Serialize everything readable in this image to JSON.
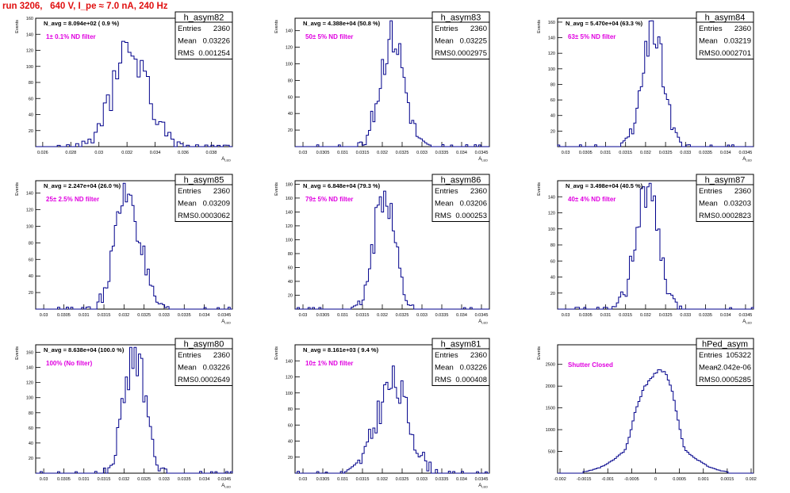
{
  "run_title": "run 3206,   640 V, I_pe ≈ 7.0 nA, 240 Hz",
  "colors": {
    "histogram": "#00008b",
    "annotation": "#e000e0",
    "run_title": "#e01010",
    "frame": "#000000"
  },
  "chart_data": [
    {
      "type": "histogram",
      "name": "h_asym82",
      "stats": [
        [
          "Entries",
          "2360"
        ],
        [
          "Mean",
          "0.03226"
        ],
        [
          "RMS",
          "0.001254"
        ]
      ],
      "navg": "N_avg = 8.094e+02 ( 0.9 %)",
      "note": "1± 0.1% ND filter",
      "ylabel": "Events",
      "xlabel": "A_{LED}",
      "xlim": [
        0.0255,
        0.0395
      ],
      "ylim": [
        0,
        160
      ],
      "xticks": [
        "0.026",
        "0.028",
        "0.03",
        "0.032",
        "0.034",
        "0.036",
        "0.038"
      ],
      "xtick_values": [
        0.026,
        0.028,
        0.03,
        0.032,
        0.034,
        0.036,
        0.038
      ],
      "yticks": [
        20,
        40,
        60,
        80,
        100,
        120,
        140,
        160
      ],
      "mean": 0.03226,
      "rms": 0.001254,
      "peak": 119,
      "bins": 64,
      "seed": 82
    },
    {
      "type": "histogram",
      "name": "h_asym83",
      "stats": [
        [
          "Entries",
          "2360"
        ],
        [
          "Mean",
          "0.03225"
        ],
        [
          "RMS",
          "0.0002975"
        ]
      ],
      "navg": "N_avg = 4.388e+04 (50.8 %)",
      "note": "50± 5% ND filter",
      "ylabel": "Events",
      "xlabel": "A_{LED}",
      "xlim": [
        0.0298,
        0.0347
      ],
      "ylim": [
        0,
        155
      ],
      "xticks": [
        "0.03",
        "0.0305",
        "0.031",
        "0.0315",
        "0.032",
        "0.0325",
        "0.033",
        "0.0335",
        "0.034",
        "0.0345"
      ],
      "xtick_values": [
        0.03,
        0.0305,
        0.031,
        0.0315,
        0.032,
        0.0325,
        0.033,
        0.0335,
        0.034,
        0.0345
      ],
      "yticks": [
        20,
        40,
        60,
        80,
        100,
        120,
        140
      ],
      "mean": 0.03225,
      "rms": 0.0002975,
      "peak": 136,
      "bins": 90,
      "seed": 83
    },
    {
      "type": "histogram",
      "name": "h_asym84",
      "stats": [
        [
          "Entries",
          "2360"
        ],
        [
          "Mean",
          "0.03219"
        ],
        [
          "RMS",
          "0.0002701"
        ]
      ],
      "navg": "N_avg = 5.470e+04 (63.3 %)",
      "note": "63± 5% ND filter",
      "ylabel": "Events",
      "xlabel": "A_{LED}",
      "xlim": [
        0.0298,
        0.0347
      ],
      "ylim": [
        0,
        165
      ],
      "xticks": [
        "0.03",
        "0.0305",
        "0.031",
        "0.0315",
        "0.032",
        "0.0325",
        "0.033",
        "0.0335",
        "0.034",
        "0.0345"
      ],
      "xtick_values": [
        0.03,
        0.0305,
        0.031,
        0.0315,
        0.032,
        0.0325,
        0.033,
        0.0335,
        0.034,
        0.0345
      ],
      "yticks": [
        20,
        40,
        60,
        80,
        100,
        120,
        140,
        160
      ],
      "mean": 0.03219,
      "rms": 0.0002701,
      "peak": 152,
      "bins": 90,
      "seed": 84
    },
    {
      "type": "histogram",
      "name": "h_asym85",
      "stats": [
        [
          "Entries",
          "2360"
        ],
        [
          "Mean",
          "0.03209"
        ],
        [
          "RMS",
          "0.0003062"
        ]
      ],
      "navg": "N_avg = 2.247e+04 (26.0 %)",
      "note": "25± 2.5% ND filter",
      "ylabel": "Events",
      "xlabel": "A_{LED}",
      "xlim": [
        0.0298,
        0.0347
      ],
      "ylim": [
        0,
        155
      ],
      "xticks": [
        "0.03",
        "0.0305",
        "0.031",
        "0.0315",
        "0.032",
        "0.0325",
        "0.033",
        "0.0335",
        "0.034",
        "0.0345"
      ],
      "xtick_values": [
        0.03,
        0.0305,
        0.031,
        0.0315,
        0.032,
        0.0325,
        0.033,
        0.0335,
        0.034,
        0.0345
      ],
      "yticks": [
        20,
        40,
        60,
        80,
        100,
        120,
        140
      ],
      "mean": 0.03209,
      "rms": 0.0003062,
      "peak": 142,
      "bins": 90,
      "seed": 85
    },
    {
      "type": "histogram",
      "name": "h_asym86",
      "stats": [
        [
          "Entries",
          "2360"
        ],
        [
          "Mean",
          "0.03206"
        ],
        [
          "RMS",
          "0.000253"
        ]
      ],
      "navg": "N_avg = 6.848e+04 (79.3 %)",
      "note": "79± 5% ND filter",
      "ylabel": "Events",
      "xlabel": "A_{LED}",
      "xlim": [
        0.0298,
        0.0347
      ],
      "ylim": [
        0,
        185
      ],
      "xticks": [
        "0.03",
        "0.0305",
        "0.031",
        "0.0315",
        "0.032",
        "0.0325",
        "0.033",
        "0.0335",
        "0.034",
        "0.0345"
      ],
      "xtick_values": [
        0.03,
        0.0305,
        0.031,
        0.0315,
        0.032,
        0.0325,
        0.033,
        0.0335,
        0.034,
        0.0345
      ],
      "yticks": [
        20,
        40,
        60,
        80,
        100,
        120,
        140,
        160,
        180
      ],
      "mean": 0.03206,
      "rms": 0.000253,
      "peak": 175,
      "bins": 90,
      "seed": 86
    },
    {
      "type": "histogram",
      "name": "h_asym87",
      "stats": [
        [
          "Entries",
          "2360"
        ],
        [
          "Mean",
          "0.03203"
        ],
        [
          "RMS",
          "0.0002823"
        ]
      ],
      "navg": "N_avg = 3.498e+04 (40.5 %)",
      "note": "40± 4% ND filter",
      "ylabel": "Events",
      "xlabel": "A_{LED}",
      "xlim": [
        0.0298,
        0.0347
      ],
      "ylim": [
        0,
        160
      ],
      "xticks": [
        "0.03",
        "0.0305",
        "0.031",
        "0.0315",
        "0.032",
        "0.0325",
        "0.033",
        "0.0335",
        "0.034",
        "0.0345"
      ],
      "xtick_values": [
        0.03,
        0.0305,
        0.031,
        0.0315,
        0.032,
        0.0325,
        0.033,
        0.0335,
        0.034,
        0.0345
      ],
      "yticks": [
        20,
        40,
        60,
        80,
        100,
        120,
        140
      ],
      "mean": 0.03203,
      "rms": 0.0002823,
      "peak": 150,
      "bins": 90,
      "seed": 87
    },
    {
      "type": "histogram",
      "name": "h_asym80",
      "stats": [
        [
          "Entries",
          "2360"
        ],
        [
          "Mean",
          "0.03226"
        ],
        [
          "RMS",
          "0.0002649"
        ]
      ],
      "navg": "N_avg = 8.638e+04 (100.0 %)",
      "note": "100% (No filter)",
      "ylabel": "Events",
      "xlabel": "A_{LED}",
      "xlim": [
        0.0298,
        0.0347
      ],
      "ylim": [
        0,
        170
      ],
      "xticks": [
        "0.03",
        "0.0305",
        "0.031",
        "0.0315",
        "0.032",
        "0.0325",
        "0.033",
        "0.0335",
        "0.034",
        "0.0345"
      ],
      "xtick_values": [
        0.03,
        0.0305,
        0.031,
        0.0315,
        0.032,
        0.0325,
        0.033,
        0.0335,
        0.034,
        0.0345
      ],
      "yticks": [
        20,
        40,
        60,
        80,
        100,
        120,
        140,
        160
      ],
      "mean": 0.03226,
      "rms": 0.0002649,
      "peak": 160,
      "bins": 90,
      "seed": 80
    },
    {
      "type": "histogram",
      "name": "h_asym81",
      "stats": [
        [
          "Entries",
          "2360"
        ],
        [
          "Mean",
          "0.03226"
        ],
        [
          "RMS",
          "0.000408"
        ]
      ],
      "navg": "N_avg = 8.161e+03 ( 9.4 %)",
      "note": "10± 1% ND filter",
      "ylabel": "Events",
      "xlabel": "A_{LED}",
      "xlim": [
        0.0298,
        0.0347
      ],
      "ylim": [
        0,
        160
      ],
      "xticks": [
        "0.03",
        "0.0305",
        "0.031",
        "0.0315",
        "0.032",
        "0.0325",
        "0.033",
        "0.0335",
        "0.034",
        "0.0345"
      ],
      "xtick_values": [
        0.03,
        0.0305,
        0.031,
        0.0315,
        0.032,
        0.0325,
        0.033,
        0.0335,
        0.034,
        0.0345
      ],
      "yticks": [
        20,
        40,
        60,
        80,
        100,
        120,
        140
      ],
      "mean": 0.03226,
      "rms": 0.000408,
      "peak": 110,
      "bins": 90,
      "seed": 81
    },
    {
      "type": "histogram",
      "name": "hPed_asym",
      "stats": [
        [
          "Entries",
          "105322"
        ],
        [
          "Mean",
          "-2.042e-06"
        ],
        [
          "RMS",
          "0.0005285"
        ]
      ],
      "navg": "",
      "note": "Shutter Closed",
      "ylabel": "Events",
      "xlabel": "",
      "xlim": [
        -0.00205,
        0.00205
      ],
      "ylim": [
        0,
        2950
      ],
      "xticks": [
        "-0.002",
        "-0.0015",
        "-0.001",
        "-0.0005",
        "0",
        "0.0005",
        "0.001",
        "0.0015",
        "0.002"
      ],
      "xtick_values": [
        -0.002,
        -0.0015,
        -0.001,
        -0.0005,
        0,
        0.0005,
        0.001,
        0.0015,
        0.002
      ],
      "yticks": [
        500,
        1000,
        1500,
        2000,
        2500
      ],
      "mean": -2.042e-06,
      "rms": 0.0005285,
      "peak": 2750,
      "bins": 100,
      "seed": 99,
      "shape": "flat"
    }
  ]
}
